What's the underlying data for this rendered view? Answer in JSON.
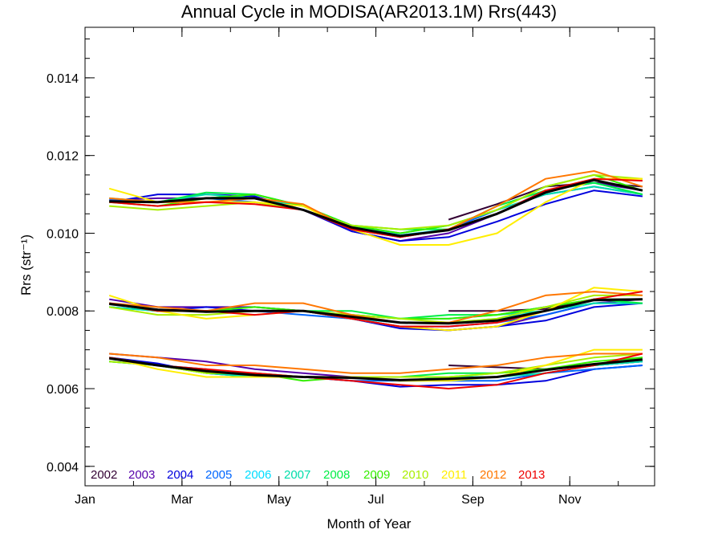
{
  "chart_data": {
    "type": "line",
    "title": "Annual Cycle in MODISA(AR2013.1M) Rrs(443)",
    "xlabel": "Month of Year",
    "ylabel": "Rrs (str⁻¹)",
    "xlim": [
      1,
      12.75
    ],
    "ylim": [
      0.0035,
      0.0153
    ],
    "x_ticks": [
      {
        "value": 1,
        "label": "Jan"
      },
      {
        "value": 3,
        "label": "Mar"
      },
      {
        "value": 5,
        "label": "May"
      },
      {
        "value": 7,
        "label": "Jul"
      },
      {
        "value": 9,
        "label": "Sep"
      },
      {
        "value": 11,
        "label": "Nov"
      }
    ],
    "y_ticks": [
      {
        "value": 0.004,
        "label": "0.004"
      },
      {
        "value": 0.006,
        "label": "0.006"
      },
      {
        "value": 0.008,
        "label": "0.008"
      },
      {
        "value": 0.01,
        "label": "0.010"
      },
      {
        "value": 0.012,
        "label": "0.012"
      },
      {
        "value": 0.014,
        "label": "0.014"
      }
    ],
    "grid": false,
    "legend_position": "bottom-left",
    "x": [
      1.5,
      2.5,
      3.5,
      4.5,
      5.5,
      6.5,
      7.5,
      8.5,
      9.5,
      10.5,
      11.5,
      12.5
    ],
    "series": [
      {
        "name": "2002",
        "color": "#330033",
        "groups": [
          [
            null,
            null,
            null,
            null,
            null,
            null,
            null,
            0.01035,
            0.01075,
            0.0112,
            0.0113,
            0.0112
          ],
          [
            null,
            null,
            null,
            null,
            null,
            null,
            null,
            0.008,
            0.008,
            0.00805,
            0.0083,
            0.0083
          ],
          [
            null,
            null,
            null,
            null,
            null,
            null,
            null,
            0.0066,
            0.00655,
            0.0065,
            0.0066,
            0.0067
          ]
        ]
      },
      {
        "name": "2003",
        "color": "#5500aa",
        "groups": [
          [
            0.01085,
            0.0109,
            0.0109,
            0.0109,
            0.0106,
            0.01005,
            0.0098,
            0.01,
            0.0105,
            0.0111,
            0.0113,
            0.0111
          ],
          [
            0.0083,
            0.0081,
            0.0081,
            0.0081,
            0.008,
            0.0078,
            0.0076,
            0.0075,
            0.0076,
            0.0079,
            0.0082,
            0.0083
          ],
          [
            0.0069,
            0.0068,
            0.0067,
            0.0065,
            0.0064,
            0.0063,
            0.0063,
            0.0063,
            0.0063,
            0.0065,
            0.0066,
            0.0067
          ]
        ]
      },
      {
        "name": "2004",
        "color": "#0000dd",
        "groups": [
          [
            0.0108,
            0.011,
            0.011,
            0.01095,
            0.0106,
            0.01005,
            0.0098,
            0.0099,
            0.0103,
            0.01075,
            0.0111,
            0.01095
          ],
          [
            0.0082,
            0.008,
            0.0081,
            0.008,
            0.008,
            0.0078,
            0.00755,
            0.0075,
            0.0076,
            0.00775,
            0.0081,
            0.0082
          ],
          [
            0.0068,
            0.00665,
            0.0064,
            0.0063,
            0.0063,
            0.0062,
            0.00605,
            0.0061,
            0.0061,
            0.0062,
            0.0065,
            0.0066
          ]
        ]
      },
      {
        "name": "2005",
        "color": "#0066ff",
        "groups": [
          [
            0.01085,
            0.0108,
            0.0109,
            0.0108,
            0.0106,
            0.0101,
            0.0099,
            0.0101,
            0.0106,
            0.011,
            0.0112,
            0.011
          ],
          [
            0.0081,
            0.008,
            0.008,
            0.008,
            0.0079,
            0.0078,
            0.0076,
            0.0076,
            0.0077,
            0.0079,
            0.0082,
            0.0082
          ],
          [
            0.0068,
            0.0066,
            0.0065,
            0.0063,
            0.0063,
            0.0062,
            0.0062,
            0.0062,
            0.0062,
            0.0064,
            0.0065,
            0.0066
          ]
        ]
      },
      {
        "name": "2006",
        "color": "#00ddff",
        "groups": [
          [
            0.0108,
            0.0108,
            0.0109,
            0.011,
            0.0107,
            0.0102,
            0.00995,
            0.0101,
            0.0105,
            0.0111,
            0.0113,
            0.011
          ],
          [
            0.0081,
            0.008,
            0.008,
            0.008,
            0.008,
            0.0078,
            0.0077,
            0.0077,
            0.0078,
            0.008,
            0.0082,
            0.0082
          ],
          [
            0.0067,
            0.0066,
            0.0065,
            0.0063,
            0.0063,
            0.0063,
            0.0062,
            0.0063,
            0.0063,
            0.0064,
            0.0066,
            0.0067
          ]
        ]
      },
      {
        "name": "2007",
        "color": "#00ddaa",
        "groups": [
          [
            0.0109,
            0.0108,
            0.011,
            0.0109,
            0.0107,
            0.0102,
            0.01,
            0.0102,
            0.0106,
            0.011,
            0.0112,
            0.011
          ],
          [
            0.0081,
            0.008,
            0.008,
            0.008,
            0.008,
            0.0079,
            0.0078,
            0.0078,
            0.0079,
            0.008,
            0.0082,
            0.0082
          ],
          [
            0.0067,
            0.0066,
            0.0064,
            0.0063,
            0.0063,
            0.0063,
            0.0062,
            0.0063,
            0.0063,
            0.0064,
            0.0066,
            0.0067
          ]
        ]
      },
      {
        "name": "2008",
        "color": "#00ee44",
        "groups": [
          [
            0.0108,
            0.0108,
            0.01105,
            0.011,
            0.0107,
            0.0102,
            0.0101,
            0.0101,
            0.0107,
            0.0111,
            0.0113,
            0.011
          ],
          [
            0.0082,
            0.008,
            0.008,
            0.0081,
            0.008,
            0.008,
            0.0078,
            0.0079,
            0.0079,
            0.0081,
            0.0083,
            0.0082
          ],
          [
            0.0067,
            0.0066,
            0.0064,
            0.0064,
            0.0063,
            0.0063,
            0.0063,
            0.0064,
            0.0064,
            0.0065,
            0.0066,
            0.0068
          ]
        ]
      },
      {
        "name": "2009",
        "color": "#33ee00",
        "groups": [
          [
            0.0108,
            0.0107,
            0.0109,
            0.011,
            0.0107,
            0.0102,
            0.01,
            0.0102,
            0.0106,
            0.0112,
            0.0115,
            0.0111
          ],
          [
            0.0082,
            0.008,
            0.008,
            0.0081,
            0.008,
            0.0079,
            0.0078,
            0.0078,
            0.0079,
            0.0081,
            0.0083,
            0.0083
          ],
          [
            0.0068,
            0.0066,
            0.0064,
            0.0064,
            0.0062,
            0.0063,
            0.0063,
            0.0063,
            0.0064,
            0.0065,
            0.0067,
            0.0068
          ]
        ]
      },
      {
        "name": "2010",
        "color": "#aaee00",
        "groups": [
          [
            0.0107,
            0.0106,
            0.0107,
            0.0108,
            0.0106,
            0.0102,
            0.0101,
            0.0102,
            0.0106,
            0.0112,
            0.0115,
            0.0114
          ],
          [
            0.0081,
            0.0079,
            0.0079,
            0.008,
            0.008,
            0.0079,
            0.0078,
            0.0077,
            0.0078,
            0.0081,
            0.0084,
            0.0084
          ],
          [
            0.0067,
            0.0066,
            0.0064,
            0.0064,
            0.0063,
            0.0063,
            0.0063,
            0.0063,
            0.0064,
            0.0066,
            0.0068,
            0.0069
          ]
        ]
      },
      {
        "name": "2011",
        "color": "#ffee00",
        "groups": [
          [
            0.01115,
            0.0108,
            0.0108,
            0.0108,
            0.0107,
            0.0101,
            0.0097,
            0.0097,
            0.01,
            0.0108,
            0.0114,
            0.0114
          ],
          [
            0.0084,
            0.008,
            0.0078,
            0.0079,
            0.008,
            0.0078,
            0.0076,
            0.0075,
            0.0076,
            0.008,
            0.0086,
            0.0085
          ],
          [
            0.0068,
            0.0065,
            0.0063,
            0.0063,
            0.0063,
            0.0063,
            0.0062,
            0.0062,
            0.0063,
            0.0066,
            0.007,
            0.007
          ]
        ]
      },
      {
        "name": "2012",
        "color": "#ff7700",
        "groups": [
          [
            0.0109,
            0.0108,
            0.0108,
            0.0109,
            0.01075,
            0.0101,
            0.0099,
            0.0101,
            0.0107,
            0.0114,
            0.0116,
            0.0112
          ],
          [
            0.0082,
            0.0081,
            0.008,
            0.0082,
            0.0082,
            0.0079,
            0.0077,
            0.0077,
            0.008,
            0.0084,
            0.0085,
            0.0084
          ],
          [
            0.0069,
            0.0068,
            0.0066,
            0.0066,
            0.0065,
            0.0064,
            0.0064,
            0.0065,
            0.0066,
            0.0068,
            0.0069,
            0.0069
          ]
        ]
      },
      {
        "name": "2013",
        "color": "#ee0000",
        "groups": [
          [
            0.0108,
            0.0107,
            0.0108,
            0.01075,
            0.0106,
            0.0101,
            0.0099,
            0.0101,
            0.0105,
            0.0111,
            0.0114,
            0.01135
          ],
          [
            0.0082,
            0.008,
            0.008,
            0.0079,
            0.008,
            0.0078,
            0.0076,
            0.0076,
            0.0077,
            0.008,
            0.0083,
            0.0085
          ],
          [
            0.0068,
            0.0066,
            0.0065,
            0.0064,
            0.0063,
            0.0062,
            0.0061,
            0.006,
            0.0061,
            0.0064,
            0.0066,
            0.0069
          ]
        ]
      },
      {
        "color": "#000000",
        "bold": true,
        "groups": [
          [
            0.01082,
            0.0108,
            0.0109,
            0.0109,
            0.0106,
            0.01015,
            0.00993,
            0.01008,
            0.0105,
            0.01105,
            0.01137,
            0.0111
          ],
          [
            0.00818,
            0.00803,
            0.00798,
            0.008,
            0.008,
            0.00785,
            0.0077,
            0.00768,
            0.00775,
            0.008,
            0.00828,
            0.0083
          ],
          [
            0.00678,
            0.0066,
            0.00645,
            0.00635,
            0.0063,
            0.00628,
            0.00622,
            0.00625,
            0.0063,
            0.00648,
            0.00663,
            0.00675
          ]
        ]
      }
    ]
  }
}
